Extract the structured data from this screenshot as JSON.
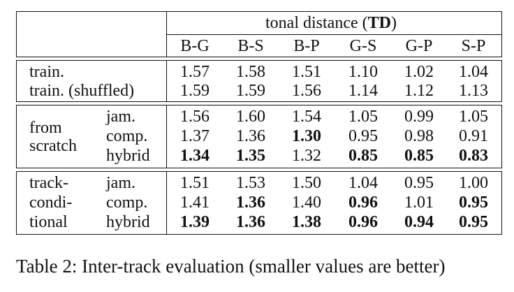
{
  "table": {
    "header": {
      "group_prefix": "tonal distance (",
      "group_bold": "TD",
      "group_suffix": ")",
      "columns": [
        "B-G",
        "B-S",
        "B-P",
        "G-S",
        "G-P",
        "S-P"
      ]
    },
    "training": {
      "rows": [
        {
          "label": "train.",
          "values": [
            "1.57",
            "1.58",
            "1.51",
            "1.10",
            "1.02",
            "1.04"
          ]
        },
        {
          "label": "train. (shuffled)",
          "values": [
            "1.59",
            "1.59",
            "1.56",
            "1.14",
            "1.12",
            "1.13"
          ]
        }
      ]
    },
    "from_scratch": {
      "group_line1": "from",
      "group_line2": "scratch",
      "rows": [
        {
          "model": "jam.",
          "values": [
            "1.56",
            "1.60",
            "1.54",
            "1.05",
            "0.99",
            "1.05"
          ],
          "bold": [
            false,
            false,
            false,
            false,
            false,
            false
          ]
        },
        {
          "model": "comp.",
          "values": [
            "1.37",
            "1.36",
            "1.30",
            "0.95",
            "0.98",
            "0.91"
          ],
          "bold": [
            false,
            false,
            true,
            false,
            false,
            false
          ]
        },
        {
          "model": "hybrid",
          "values": [
            "1.34",
            "1.35",
            "1.32",
            "0.85",
            "0.85",
            "0.83"
          ],
          "bold": [
            true,
            true,
            false,
            true,
            true,
            true
          ]
        }
      ]
    },
    "track_conditional": {
      "group_line1": "track-",
      "group_line2": "condi-",
      "group_line3": "tional",
      "rows": [
        {
          "model": "jam.",
          "values": [
            "1.51",
            "1.53",
            "1.50",
            "1.04",
            "0.95",
            "1.00"
          ],
          "bold": [
            false,
            false,
            false,
            false,
            false,
            false
          ]
        },
        {
          "model": "comp.",
          "values": [
            "1.41",
            "1.36",
            "1.40",
            "0.96",
            "1.01",
            "0.95"
          ],
          "bold": [
            false,
            true,
            false,
            true,
            false,
            true
          ]
        },
        {
          "model": "hybrid",
          "values": [
            "1.39",
            "1.36",
            "1.38",
            "0.96",
            "0.94",
            "0.95"
          ],
          "bold": [
            true,
            true,
            true,
            true,
            true,
            true
          ]
        }
      ]
    }
  },
  "caption": "Table 2: Inter-track evaluation (smaller values are better)"
}
